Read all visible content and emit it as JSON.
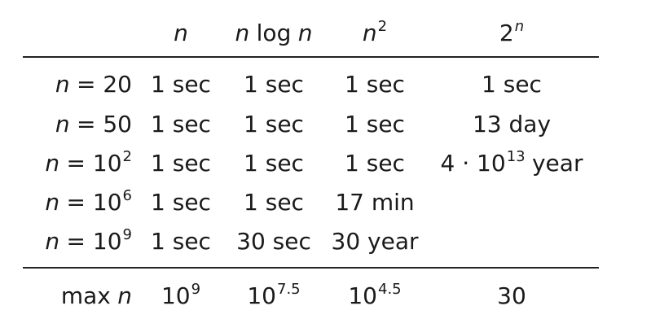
{
  "header": [
    [
      "n"
    ],
    [
      "n",
      "log",
      "n"
    ],
    [
      "n",
      "2"
    ],
    [
      "2",
      "n"
    ]
  ],
  "rows": [
    {
      "label": [
        "n",
        "= 20"
      ],
      "cells": [
        [
          "1 sec"
        ],
        [
          "1 sec"
        ],
        [
          "1 sec"
        ],
        [
          "1 sec"
        ]
      ]
    },
    {
      "label": [
        "n",
        "= 50"
      ],
      "cells": [
        [
          "1 sec"
        ],
        [
          "1 sec"
        ],
        [
          "1 sec"
        ],
        [
          "13 day"
        ]
      ]
    },
    {
      "label": [
        "n",
        "= 10",
        "2"
      ],
      "cells": [
        [
          "1 sec"
        ],
        [
          "1 sec"
        ],
        [
          "1 sec"
        ],
        [
          "4 · 10",
          "13",
          "year"
        ]
      ]
    },
    {
      "label": [
        "n",
        "= 10",
        "6"
      ],
      "cells": [
        [
          "1 sec"
        ],
        [
          "1 sec"
        ],
        [
          "17 min"
        ]
      ]
    },
    {
      "label": [
        "n",
        "= 10",
        "9"
      ],
      "cells": [
        [
          "1 sec"
        ],
        [
          "30 sec"
        ],
        [
          "30 year"
        ]
      ]
    }
  ],
  "footer": {
    "label": [
      "max",
      "n"
    ],
    "cells": [
      [
        "10",
        "9"
      ],
      [
        "10",
        "7.5"
      ],
      [
        "10",
        "4.5"
      ],
      [
        "30"
      ]
    ]
  }
}
